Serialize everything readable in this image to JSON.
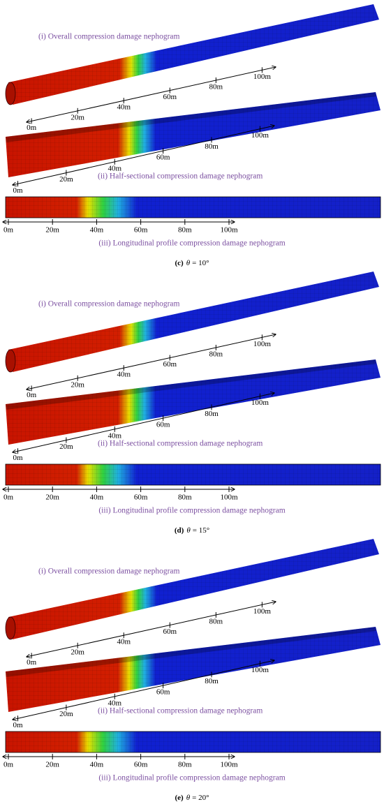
{
  "panels": [
    {
      "views": [
        {
          "label": "(i) Overall  compression damage nephogram",
          "scale": [
            "0m",
            "20m",
            "40m",
            "60m",
            "80m",
            "100m"
          ]
        },
        {
          "label": "(ii) Half-sectional  compression damage nephogram",
          "scale": [
            "0m",
            "20m",
            "40m",
            "60m",
            "80m",
            "100m"
          ]
        },
        {
          "label": "(iii) Longitudinal  profile compression damage nephogram",
          "scale": [
            "0m",
            "20m",
            "40m",
            "60m",
            "80m",
            "100m"
          ]
        }
      ],
      "caption": {
        "tag": "(c)",
        "symbol": "θ",
        "value": "= 10°"
      }
    },
    {
      "views": [
        {
          "label": "(i) Overall  compression damage nephogram",
          "scale": [
            "0m",
            "20m",
            "40m",
            "60m",
            "80m",
            "100m"
          ]
        },
        {
          "label": "(ii) Half-sectional  compression damage nephogram",
          "scale": [
            "0m",
            "20m",
            "40m",
            "60m",
            "80m",
            "100m"
          ]
        },
        {
          "label": "(iii) Longitudinal  profile compression damage nephogram",
          "scale": [
            "0m",
            "20m",
            "40m",
            "60m",
            "80m",
            "100m"
          ]
        }
      ],
      "caption": {
        "tag": "(d)",
        "symbol": "θ",
        "value": "= 15°"
      }
    },
    {
      "views": [
        {
          "label": "(i) Overall  compression damage nephogram",
          "scale": [
            "0m",
            "20m",
            "40m",
            "60m",
            "80m",
            "100m"
          ]
        },
        {
          "label": "(ii) Half-sectional  compression damage nephogram",
          "scale": [
            "0m",
            "20m",
            "40m",
            "60m",
            "80m",
            "100m"
          ]
        },
        {
          "label": "(iii) Longitudinal  profile compression damage nephogram",
          "scale": [
            "0m",
            "20m",
            "40m",
            "60m",
            "80m",
            "100m"
          ]
        }
      ],
      "caption": {
        "tag": "(e)",
        "symbol": "θ",
        "value": "= 20°"
      }
    }
  ]
}
